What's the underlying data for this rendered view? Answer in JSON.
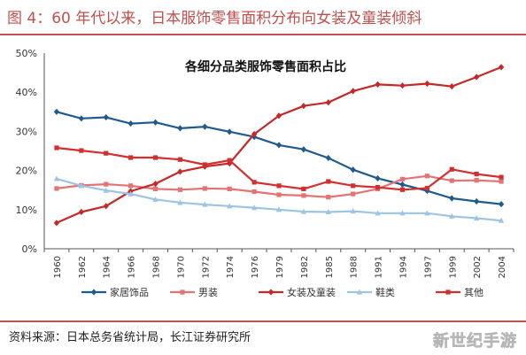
{
  "figure": {
    "title": "图 4：60 年代以来，日本服饰零售面积分布向女装及童装倾斜",
    "source": "资料来源：日本总务省统计局，长江证券研究所",
    "watermark": "新世纪手游",
    "accent_color": "#c0504d"
  },
  "chart_data": {
    "type": "line",
    "title": "各细分品类服饰零售面积占比",
    "xlabel": "",
    "ylabel": "",
    "ylim": [
      0,
      50
    ],
    "yticks": [
      "0%",
      "10%",
      "20%",
      "30%",
      "40%",
      "50%"
    ],
    "grid": false,
    "legend_position": "bottom",
    "x": [
      "1960",
      "1962",
      "1964",
      "1966",
      "1968",
      "1970",
      "1972",
      "1974",
      "1976",
      "1979",
      "1982",
      "1985",
      "1988",
      "1991",
      "1994",
      "1997",
      "1999",
      "2002",
      "2004"
    ],
    "series": [
      {
        "name": "家居饰品",
        "color": "#1f5b8e",
        "marker": "diamond",
        "values": [
          35.0,
          33.3,
          33.6,
          32.0,
          32.3,
          30.8,
          31.2,
          29.9,
          28.6,
          26.5,
          25.4,
          23.2,
          20.2,
          18.0,
          16.4,
          14.8,
          12.9,
          12.1,
          11.4
        ]
      },
      {
        "name": "男装",
        "color": "#e57373",
        "marker": "square",
        "values": [
          15.4,
          16.2,
          16.5,
          16.1,
          15.3,
          15.1,
          15.4,
          15.3,
          14.6,
          13.8,
          13.6,
          13.2,
          14.0,
          15.3,
          17.8,
          18.6,
          17.4,
          17.5,
          17.2
        ]
      },
      {
        "name": "女装及童装",
        "color": "#c62828",
        "marker": "diamond",
        "values": [
          6.6,
          9.4,
          10.9,
          14.7,
          16.6,
          19.7,
          21.0,
          21.8,
          29.3,
          34.0,
          36.5,
          37.4,
          40.3,
          42.0,
          41.7,
          42.2,
          41.5,
          43.9,
          46.4
        ]
      },
      {
        "name": "鞋类",
        "color": "#9ec4e4",
        "marker": "triangle",
        "values": [
          17.9,
          16.1,
          14.9,
          14.0,
          12.6,
          11.8,
          11.3,
          10.9,
          10.5,
          10.0,
          9.5,
          9.4,
          9.6,
          9.1,
          9.1,
          9.1,
          8.3,
          7.8,
          7.2
        ]
      },
      {
        "name": "其他",
        "color": "#d32f2f",
        "marker": "square",
        "values": [
          25.8,
          25.1,
          24.4,
          23.3,
          23.3,
          22.8,
          21.5,
          22.6,
          17.0,
          16.1,
          15.3,
          17.2,
          16.1,
          15.7,
          15.1,
          15.5,
          20.3,
          19.1,
          18.3
        ]
      }
    ]
  }
}
